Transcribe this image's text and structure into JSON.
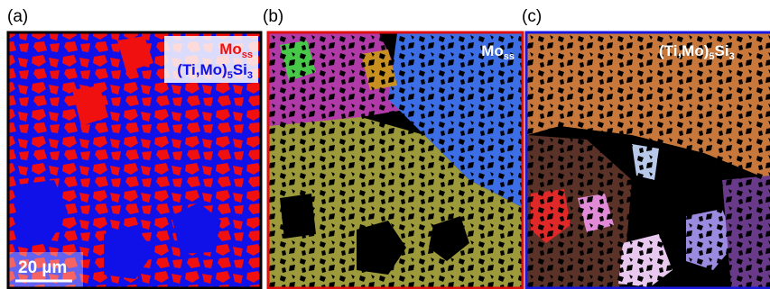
{
  "panels": [
    {
      "label": "(a)",
      "annotations": [
        [
          "Mo",
          "ss"
        ],
        [
          "(Ti,Mo)",
          "5",
          "Si",
          "3"
        ]
      ],
      "scale_bar": "20 µm"
    },
    {
      "label": "(b)",
      "annotations": [
        [
          "Mo",
          "ss"
        ]
      ]
    },
    {
      "label": "(c)",
      "annotations": [
        [
          "(Ti,Mo)",
          "5",
          "Si",
          "3"
        ]
      ]
    }
  ]
}
